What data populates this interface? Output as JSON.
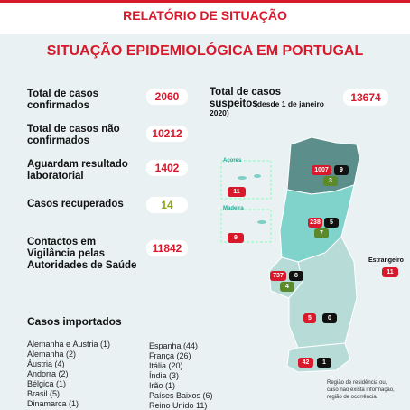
{
  "header": {
    "title": "RELATÓRIO DE SITUAÇÃO",
    "subtitle": "SITUAÇÃO EPIDEMIOLÓGICA EM PORTUGAL"
  },
  "stats": [
    {
      "label": "Total de casos confirmados",
      "value": 2060
    },
    {
      "label": "Total de casos não confirmados",
      "value": 10212
    },
    {
      "label": "Aguardam resultado laboratorial",
      "value": 1402
    },
    {
      "label": "Casos recuperados",
      "value": 14
    },
    {
      "label": "Contactos em Vigilância pelas Autoridades de Saúde",
      "value": 11842
    }
  ],
  "suspects": {
    "label": "Total de casos suspeitos",
    "note": "(desde 1 de janeiro 2020)",
    "value": 13674
  },
  "map": {
    "mainland": [
      {
        "badges": [
          1007,
          9,
          3
        ]
      },
      {
        "badges": [
          238,
          5,
          7
        ]
      },
      {
        "badges": [
          737,
          8,
          4
        ]
      },
      {
        "badges": [
          5,
          0
        ]
      },
      {
        "badges": [
          42,
          1
        ]
      }
    ],
    "islands": [
      {
        "name": "Açores",
        "badges": [
          11
        ]
      },
      {
        "name": "Madeira",
        "badges": [
          9
        ]
      }
    ],
    "abroad": {
      "name": "Estrangeiro",
      "badges": [
        11
      ]
    },
    "note": "Região de residência ou, caso não exista informação, região de ocorrência."
  },
  "imported": {
    "title": "Casos importados",
    "items": [
      "Alemanha e Áustria (1)",
      "Alemanha (2)",
      "Áustria (4)",
      "Andorra (2)",
      "Bélgica (1)",
      "Brasil (5)",
      "Dinamarca (1)",
      "Espanha (44)",
      "França (26)",
      "Itália (20)",
      "Índia (3)",
      "Irão (1)",
      "Países Baixos (6)",
      "Reino Unido 11)"
    ]
  }
}
